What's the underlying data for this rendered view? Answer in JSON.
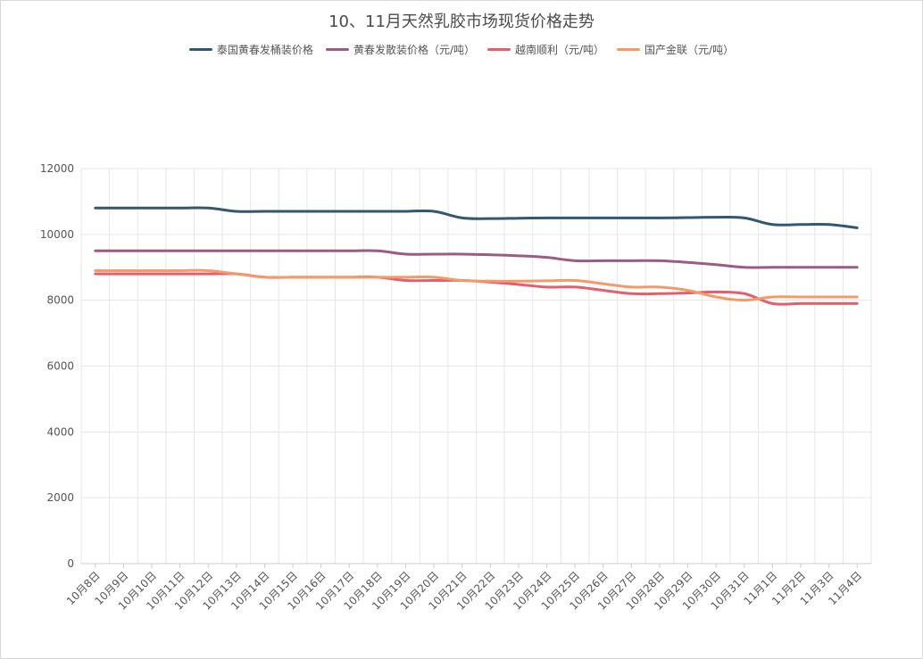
{
  "chart_data": {
    "type": "line",
    "title": "10、11月天然乳胶市场现货价格走势",
    "xlabel": "",
    "ylabel": "",
    "ylim": [
      0,
      12000
    ],
    "yticks": [
      0,
      2000,
      4000,
      6000,
      8000,
      10000,
      12000
    ],
    "grid": true,
    "legend_position": "top-center",
    "categories": [
      "10月8日",
      "10月9日",
      "10月10日",
      "10月11日",
      "10月12日",
      "10月13日",
      "10月14日",
      "10月15日",
      "10月16日",
      "10月17日",
      "10月18日",
      "10月19日",
      "10月20日",
      "10月21日",
      "10月22日",
      "10月23日",
      "10月24日",
      "10月25日",
      "10月26日",
      "10月27日",
      "10月28日",
      "10月29日",
      "10月30日",
      "10月31日",
      "11月1日",
      "11月2日",
      "11月3日",
      "11月4日"
    ],
    "series": [
      {
        "name": "泰国黄春发桶装价格",
        "color": "#34566f",
        "values": [
          10800,
          10800,
          10800,
          10800,
          10800,
          10700,
          10700,
          10700,
          10700,
          10700,
          10700,
          10700,
          10700,
          10500,
          10480,
          10490,
          10500,
          10500,
          10500,
          10500,
          10500,
          10510,
          10520,
          10500,
          10300,
          10300,
          10300,
          10200
        ]
      },
      {
        "name": "黄春发散装价格（元/吨）",
        "color": "#9b5c84",
        "values": [
          9500,
          9500,
          9500,
          9500,
          9500,
          9500,
          9500,
          9500,
          9500,
          9500,
          9500,
          9400,
          9400,
          9400,
          9380,
          9350,
          9300,
          9200,
          9200,
          9200,
          9200,
          9150,
          9080,
          9000,
          9000,
          9000,
          9000,
          9000
        ]
      },
      {
        "name": "越南顺利（元/吨）",
        "color": "#e0606e",
        "values": [
          8800,
          8800,
          8800,
          8800,
          8800,
          8800,
          8700,
          8700,
          8700,
          8700,
          8700,
          8600,
          8600,
          8600,
          8550,
          8480,
          8400,
          8400,
          8300,
          8200,
          8200,
          8220,
          8250,
          8200,
          7900,
          7900,
          7900,
          7900
        ]
      },
      {
        "name": "国产金联（元/吨）",
        "color": "#f39a6b",
        "values": [
          8900,
          8900,
          8900,
          8900,
          8900,
          8800,
          8700,
          8700,
          8700,
          8700,
          8700,
          8700,
          8700,
          8600,
          8580,
          8580,
          8590,
          8600,
          8500,
          8400,
          8400,
          8300,
          8100,
          8000,
          8100,
          8100,
          8100,
          8100
        ]
      }
    ]
  }
}
